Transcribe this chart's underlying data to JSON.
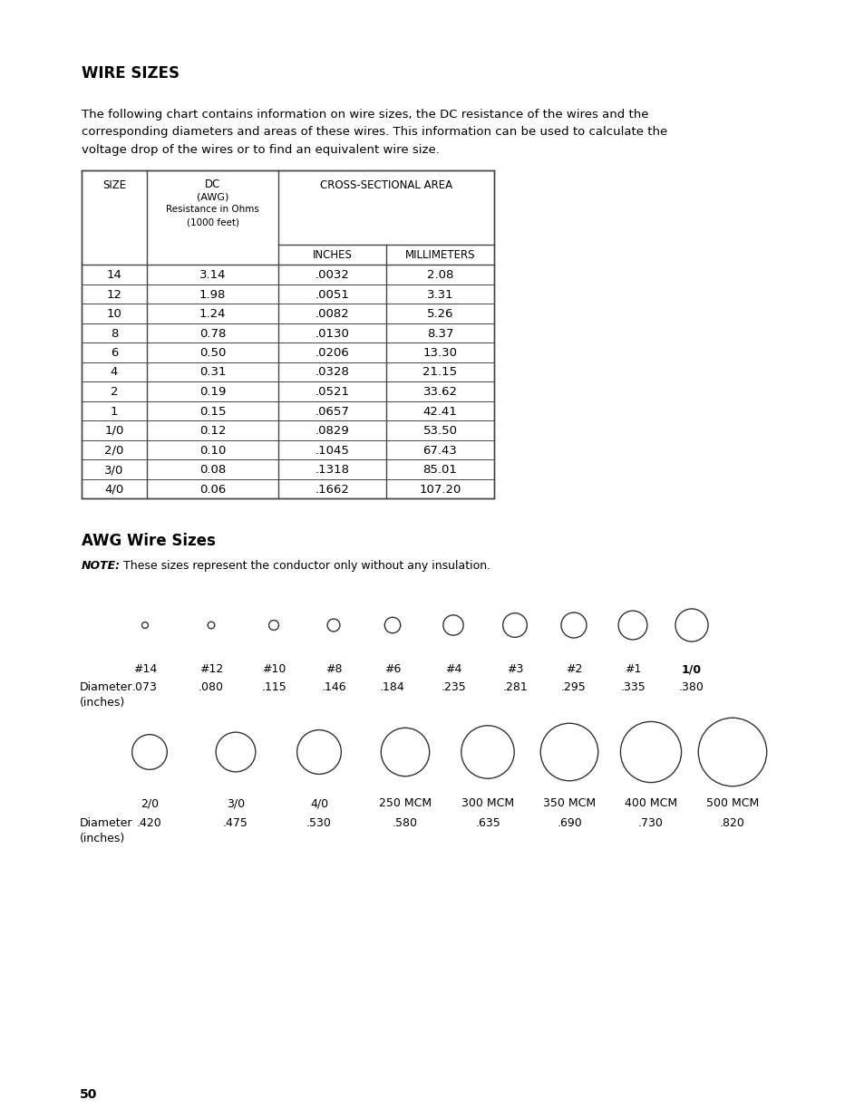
{
  "title": "WIRE SIZES",
  "intro_line1": "The following chart contains information on wire sizes, the DC resistance of the wires and the",
  "intro_line2": "corresponding diameters and areas of these wires. This information can be used to calculate the",
  "intro_line3": "voltage drop of the wires or to find an equivalent wire size.",
  "table_data": [
    [
      "14",
      "3.14",
      ".0032",
      "2.08"
    ],
    [
      "12",
      "1.98",
      ".0051",
      "3.31"
    ],
    [
      "10",
      "1.24",
      ".0082",
      "5.26"
    ],
    [
      "8",
      "0.78",
      ".0130",
      "8.37"
    ],
    [
      "6",
      "0.50",
      ".0206",
      "13.30"
    ],
    [
      "4",
      "0.31",
      ".0328",
      "21.15"
    ],
    [
      "2",
      "0.19",
      ".0521",
      "33.62"
    ],
    [
      "1",
      "0.15",
      ".0657",
      "42.41"
    ],
    [
      "1/0",
      "0.12",
      ".0829",
      "53.50"
    ],
    [
      "2/0",
      "0.10",
      ".1045",
      "67.43"
    ],
    [
      "3/0",
      "0.08",
      ".1318",
      "85.01"
    ],
    [
      "4/0",
      "0.06",
      ".1662",
      "107.20"
    ]
  ],
  "awg_title": "AWG Wire Sizes",
  "note_bold": "NOTE:",
  "note_rest": " These sizes represent the conductor only without any insulation.",
  "row1_sizes": [
    "#14",
    "#12",
    "#10",
    "#8",
    "#6",
    "#4",
    "#3",
    "#2",
    "#1",
    "1/0"
  ],
  "row1_diameters": [
    ".073",
    ".080",
    ".115",
    ".146",
    ".184",
    ".235",
    ".281",
    ".295",
    ".335",
    ".380"
  ],
  "row1_diameters_float": [
    0.073,
    0.08,
    0.115,
    0.146,
    0.184,
    0.235,
    0.281,
    0.295,
    0.335,
    0.38
  ],
  "row2_sizes": [
    "2/0",
    "3/0",
    "4/0",
    "250 MCM",
    "300 MCM",
    "350 MCM",
    "400 MCM",
    "500 MCM"
  ],
  "row2_diameters": [
    ".420",
    ".475",
    ".530",
    ".580",
    ".635",
    ".690",
    ".730",
    ".820"
  ],
  "row2_diameters_float": [
    0.42,
    0.475,
    0.53,
    0.58,
    0.635,
    0.69,
    0.73,
    0.82
  ],
  "page_number": "50"
}
